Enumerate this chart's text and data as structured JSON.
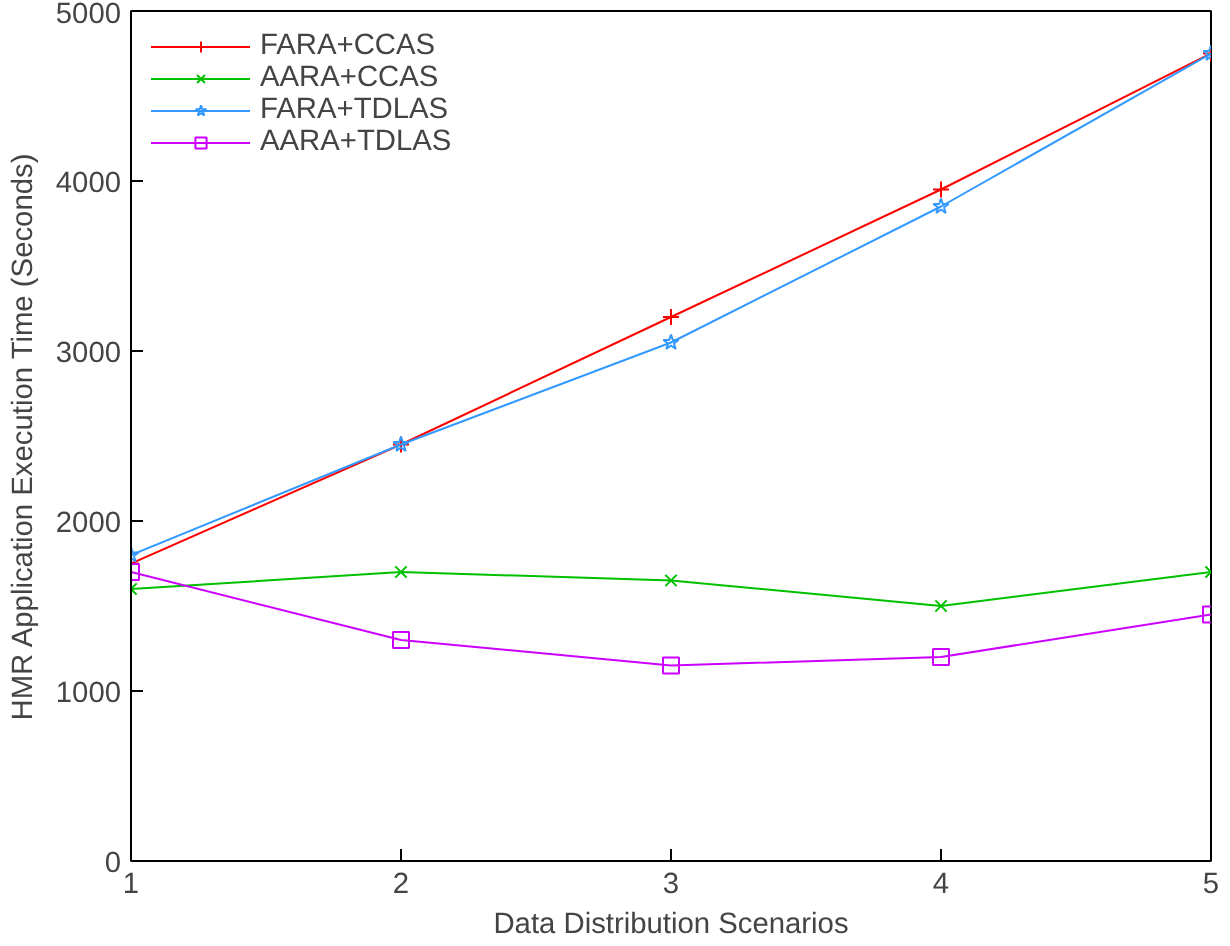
{
  "chart_data": {
    "type": "line",
    "xlabel": "Data Distribution Scenarios",
    "ylabel": "HMR Application Execution Time (Seconds)",
    "x": [
      1,
      2,
      3,
      4,
      5
    ],
    "xlim": [
      1,
      5
    ],
    "xticks": [
      1,
      2,
      3,
      4,
      5
    ],
    "ylim": [
      0,
      5000
    ],
    "yticks": [
      0,
      1000,
      2000,
      3000,
      4000,
      5000
    ],
    "grid": false,
    "legend": "top left",
    "line_style": "solid",
    "series": [
      {
        "name": "FARA+CCAS",
        "color": "#ff0000",
        "marker": "cross",
        "values": [
          1750,
          2450,
          3200,
          3950,
          4750
        ]
      },
      {
        "name": "AARA+CCAS",
        "color": "#00c000",
        "marker": "x",
        "values": [
          1600,
          1700,
          1650,
          1500,
          1700
        ]
      },
      {
        "name": "FARA+TDLAS",
        "color": "#3399ff",
        "marker": "star",
        "values": [
          1800,
          2450,
          3050,
          3850,
          4750
        ]
      },
      {
        "name": "AARA+TDLAS",
        "color": "#cc00ff",
        "marker": "square",
        "values": [
          1700,
          1300,
          1150,
          1200,
          1450
        ]
      }
    ]
  }
}
